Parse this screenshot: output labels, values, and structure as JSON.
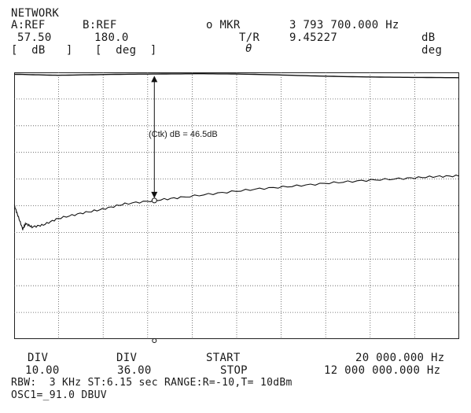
{
  "header": {
    "title": "NETWORK",
    "a_label": "A:REF",
    "b_label": "B:REF",
    "marker_label": "o MKR",
    "marker_freq": "3 793 700.000 Hz",
    "a_value": "57.50",
    "b_value": "180.0",
    "tr_label": "T/R",
    "tr_value": "9.45227",
    "tr_unit": "dB",
    "a_unit": "[  dB   ]",
    "b_unit": "[  deg  ]",
    "theta": "θ",
    "theta_unit": "deg"
  },
  "footer": {
    "div_a_label": "DIV",
    "div_a_value": "10.00",
    "div_b_label": "DIV",
    "div_b_value": "36.00",
    "start_label": "START",
    "start_value": "20 000.000 Hz",
    "stop_label": "STOP",
    "stop_value": "12 000 000.000 Hz",
    "rbw_line": "RBW:  3 KHz ST:6.15 sec RANGE:R=-10,T= 10dBm",
    "osc_line": "OSC1=_91.0 DBUV"
  },
  "annotation": {
    "text": "(Ctk) dB = 46.5dB"
  },
  "chart_data": {
    "type": "line",
    "grid": true,
    "x_start_hz": 20000,
    "x_stop_hz": 12000000,
    "x_scale": "linear",
    "x_divisions": 10,
    "y_divisions": 10,
    "y_ref_db": 57.5,
    "y_div_db": 10,
    "ylim": [
      -42.5,
      57.5
    ],
    "marker": {
      "x_hz": 3793700,
      "y_db": 9.45227
    },
    "difference_db": 46.5,
    "series": [
      {
        "values": [
          [
            20000,
            56.8
          ],
          [
            600000,
            56.6
          ],
          [
            1200000,
            56.4
          ],
          [
            2000000,
            56.6
          ],
          [
            3000000,
            56.8
          ],
          [
            4000000,
            56.9
          ],
          [
            5000000,
            57.0
          ],
          [
            6000000,
            56.9
          ],
          [
            7000000,
            56.6
          ],
          [
            8000000,
            56.2
          ],
          [
            9000000,
            55.9
          ],
          [
            10000000,
            55.7
          ],
          [
            11000000,
            55.6
          ],
          [
            12000000,
            55.5
          ]
        ]
      },
      {
        "values": [
          [
            20000,
            7.8
          ],
          [
            120000,
            3.8
          ],
          [
            250000,
            -1.3
          ],
          [
            330000,
            0.8
          ],
          [
            500000,
            -0.5
          ],
          [
            800000,
            0.3
          ],
          [
            1200000,
            2.7
          ],
          [
            1800000,
            4.6
          ],
          [
            2400000,
            6.2
          ],
          [
            3000000,
            8.2
          ],
          [
            3793700,
            9.45
          ],
          [
            4500000,
            10.6
          ],
          [
            5500000,
            12.2
          ],
          [
            6500000,
            13.7
          ],
          [
            7500000,
            14.8
          ],
          [
            8500000,
            16.0
          ],
          [
            9500000,
            17.0
          ],
          [
            10500000,
            17.7
          ],
          [
            11300000,
            18.4
          ],
          [
            12000000,
            18.7
          ]
        ]
      }
    ]
  }
}
